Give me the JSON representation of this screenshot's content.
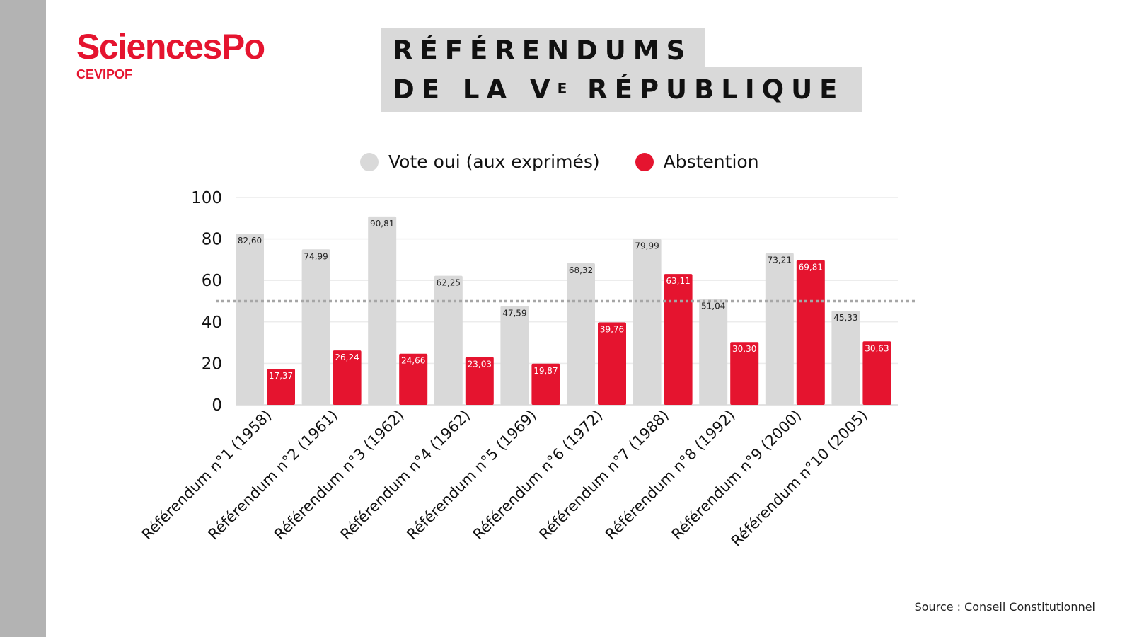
{
  "branding": {
    "logo_main": "SciencesPo",
    "logo_sub": "CEVIPOF"
  },
  "title": {
    "line1": "RÉFÉRENDUMS",
    "line2_pre": "DE LA V",
    "line2_sup": "E",
    "line2_post": " RÉPUBLIQUE"
  },
  "source": "Source : Conseil Constitutionnel",
  "colors": {
    "vote_oui": "#d9d9d9",
    "abstention": "#e5142f",
    "side_band": "#b3b3b3",
    "reference_line": "#a6a6a6"
  },
  "chart_data": {
    "type": "bar",
    "title": "RÉFÉRENDUMS DE LA Ve RÉPUBLIQUE",
    "xlabel": "",
    "ylabel": "",
    "ylim": [
      0,
      100
    ],
    "yticks": [
      0,
      20,
      40,
      60,
      80,
      100
    ],
    "grid": true,
    "legend_position": "top",
    "reference_line": 50,
    "categories": [
      "Référendum n°1 (1958)",
      "Référendum n°2 (1961)",
      "Référendum n°3 (1962)",
      "Référendum n°4 (1962)",
      "Référendum n°5 (1969)",
      "Référendum n°6 (1972)",
      "Référendum n°7 (1988)",
      "Référendum n°8 (1992)",
      "Référendum n°9 (2000)",
      "Référendum n°10 (2005)"
    ],
    "series": [
      {
        "name": "Vote oui (aux exprimés)",
        "values": [
          82.6,
          74.99,
          90.81,
          62.25,
          47.59,
          68.32,
          79.99,
          51.04,
          73.21,
          45.33
        ],
        "labels": [
          "82,60",
          "74,99",
          "90,81",
          "62,25",
          "47,59",
          "68,32",
          "79,99",
          "51,04",
          "73,21",
          "45,33"
        ]
      },
      {
        "name": "Abstention",
        "values": [
          17.37,
          26.24,
          24.66,
          23.03,
          19.87,
          39.76,
          63.11,
          30.3,
          69.81,
          30.63
        ],
        "labels": [
          "17,37",
          "26,24",
          "24,66",
          "23,03",
          "19,87",
          "39,76",
          "63,11",
          "30,30",
          "69,81",
          "30,63"
        ]
      }
    ]
  }
}
